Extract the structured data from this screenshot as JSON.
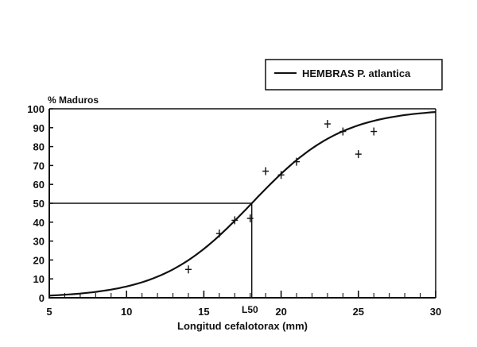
{
  "chart_data": {
    "type": "line",
    "title": "",
    "legend": {
      "entries": [
        "HEMBRAS P. atlantica"
      ],
      "position": "top-right"
    },
    "xlabel": "Longitud cefalotorax (mm)",
    "ylabel": "% Maduros",
    "xlim": [
      5,
      30
    ],
    "ylim": [
      0,
      100
    ],
    "xticks": [
      5,
      10,
      15,
      20,
      25,
      30
    ],
    "yticks": [
      0,
      10,
      20,
      30,
      40,
      50,
      60,
      70,
      80,
      90,
      100
    ],
    "grid": false,
    "annotations": [
      {
        "text": "L50",
        "x": 18.1,
        "y": 50
      }
    ],
    "series": [
      {
        "name": "HEMBRAS P. atlantica (observed)",
        "type": "scatter",
        "marker": "+",
        "x": [
          14,
          16,
          17,
          18,
          19,
          20,
          21,
          23,
          24,
          25,
          26
        ],
        "y": [
          15,
          34,
          41,
          42,
          67,
          65,
          72,
          92,
          88,
          76,
          88
        ]
      },
      {
        "name": "HEMBRAS P. atlantica (fitted logistic)",
        "type": "line",
        "x": [
          5,
          6,
          7,
          8,
          9,
          10,
          11,
          12,
          13,
          14,
          15,
          16,
          17,
          18,
          19,
          20,
          21,
          22,
          23,
          24,
          25,
          26,
          27,
          28,
          29,
          30
        ],
        "y": [
          1.2,
          1.6,
          2.2,
          3.1,
          4.3,
          6.0,
          8.3,
          11.3,
          15.2,
          20.0,
          26.0,
          32.9,
          40.8,
          49.4,
          57.8,
          65.9,
          73.1,
          79.1,
          84.0,
          87.9,
          91.0,
          93.3,
          95.1,
          96.4,
          97.4,
          98.1
        ]
      }
    ],
    "l50": 18.1
  },
  "legend": {
    "label": "HEMBRAS P. atlantica"
  },
  "axes": {
    "ylabel": "% Maduros",
    "xlabel": "Longitud cefalotorax (mm)",
    "l50_label": "L50"
  }
}
